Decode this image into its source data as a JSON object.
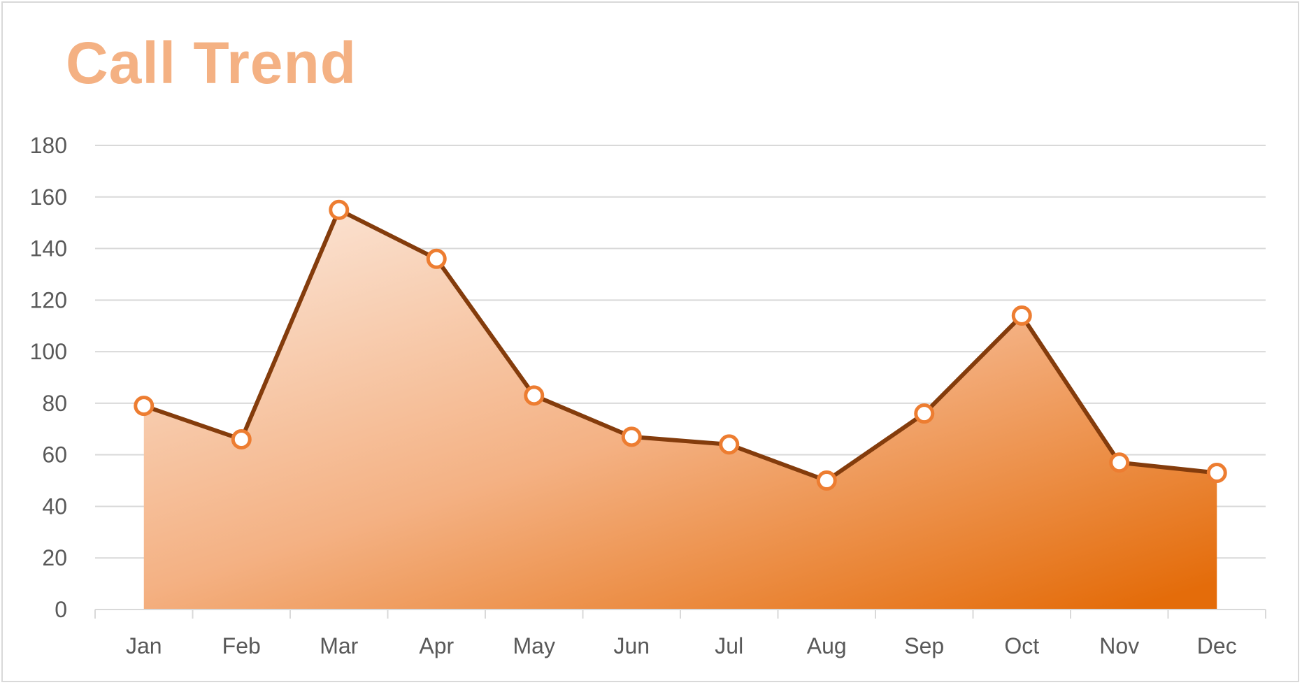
{
  "chart_data": {
    "type": "area",
    "title": "Call Trend",
    "xlabel": "",
    "ylabel": "",
    "categories": [
      "Jan",
      "Feb",
      "Mar",
      "Apr",
      "May",
      "Jun",
      "Jul",
      "Aug",
      "Sep",
      "Oct",
      "Nov",
      "Dec"
    ],
    "series": [
      {
        "values": [
          79,
          66,
          155,
          136,
          83,
          67,
          64,
          50,
          76,
          114,
          57,
          53
        ]
      }
    ],
    "ylim": [
      0,
      180
    ],
    "yticks": [
      0,
      20,
      40,
      60,
      80,
      100,
      120,
      140,
      160,
      180
    ],
    "grid": true,
    "markers": true,
    "colors": {
      "title": "#f4b183",
      "line": "#843c0c",
      "marker_stroke": "#ed7d31",
      "marker_fill": "#ffffff",
      "area_light": "#fbe5d6",
      "area_mid": "#f4b183",
      "area_dark": "#e46c0a",
      "grid": "#d9d9d9",
      "tick_text": "#595959"
    }
  }
}
